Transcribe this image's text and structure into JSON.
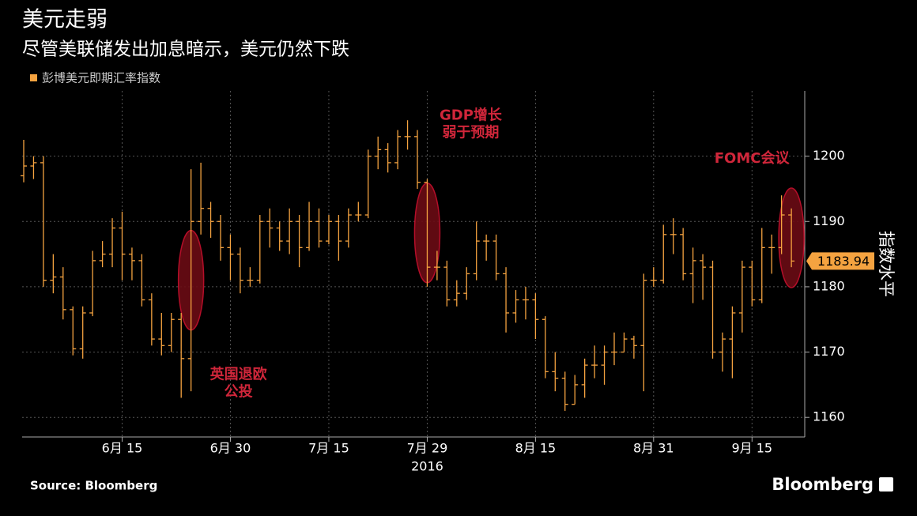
{
  "chart_data": {
    "type": "ohlc",
    "title": "美元走弱",
    "subtitle": "尽管美联储发出加息暗示，美元仍然下跌",
    "y_label": "指数水平",
    "year_label": "2016",
    "source": "Source: Bloomberg",
    "brand": "Bloomberg",
    "series_name": "彭博美元即期汇率指数",
    "color": "#f5a340",
    "grid": true,
    "x": [
      "2016-06-01",
      "2016-06-02",
      "2016-06-03",
      "2016-06-06",
      "2016-06-07",
      "2016-06-08",
      "2016-06-09",
      "2016-06-10",
      "2016-06-13",
      "2016-06-14",
      "2016-06-15",
      "2016-06-16",
      "2016-06-17",
      "2016-06-20",
      "2016-06-21",
      "2016-06-22",
      "2016-06-23",
      "2016-06-24",
      "2016-06-27",
      "2016-06-28",
      "2016-06-29",
      "2016-06-30",
      "2016-07-01",
      "2016-07-05",
      "2016-07-06",
      "2016-07-07",
      "2016-07-08",
      "2016-07-11",
      "2016-07-12",
      "2016-07-13",
      "2016-07-14",
      "2016-07-15",
      "2016-07-18",
      "2016-07-19",
      "2016-07-20",
      "2016-07-21",
      "2016-07-22",
      "2016-07-25",
      "2016-07-26",
      "2016-07-27",
      "2016-07-28",
      "2016-07-29",
      "2016-08-01",
      "2016-08-02",
      "2016-08-03",
      "2016-08-04",
      "2016-08-05",
      "2016-08-08",
      "2016-08-09",
      "2016-08-10",
      "2016-08-11",
      "2016-08-12",
      "2016-08-15",
      "2016-08-16",
      "2016-08-17",
      "2016-08-18",
      "2016-08-19",
      "2016-08-22",
      "2016-08-23",
      "2016-08-24",
      "2016-08-25",
      "2016-08-26",
      "2016-08-29",
      "2016-08-30",
      "2016-08-31",
      "2016-09-01",
      "2016-09-02",
      "2016-09-06",
      "2016-09-07",
      "2016-09-08",
      "2016-09-09",
      "2016-09-12",
      "2016-09-13",
      "2016-09-14",
      "2016-09-15",
      "2016-09-16",
      "2016-09-19",
      "2016-09-20",
      "2016-09-21"
    ],
    "open": [
      1197,
      1198.5,
      1199,
      1181,
      1181.5,
      1176.5,
      1170.5,
      1176,
      1184,
      1185,
      1189,
      1185,
      1184,
      1178,
      1172,
      1171,
      1175,
      1169,
      1190,
      1192,
      1190,
      1186,
      1185,
      1181,
      1181,
      1190,
      1189,
      1187,
      1190,
      1186,
      1190,
      1187,
      1190,
      1187,
      1191,
      1191,
      1200,
      1201,
      1199,
      1203,
      1203,
      1196,
      1183,
      1183,
      1178,
      1179,
      1182,
      1187,
      1187,
      1182,
      1176,
      1178,
      1178,
      1175,
      1167,
      1166,
      1162,
      1165,
      1168,
      1168,
      1170,
      1170,
      1172,
      1171,
      1181,
      1181,
      1188,
      1188,
      1182,
      1184,
      1183,
      1170,
      1172,
      1176,
      1183,
      1178,
      1186,
      1186,
      1191
    ],
    "high": [
      1202.5,
      1200,
      1200,
      1185,
      1183,
      1177,
      1177,
      1185.5,
      1187,
      1190.5,
      1191.5,
      1186,
      1185,
      1179,
      1176,
      1176,
      1176,
      1198,
      1199,
      1193,
      1191,
      1188,
      1186,
      1183,
      1191,
      1192,
      1190,
      1192,
      1191,
      1193,
      1192,
      1191,
      1191,
      1192,
      1193,
      1201,
      1203,
      1202,
      1204,
      1205.5,
      1204,
      1196.5,
      1185.5,
      1184,
      1181,
      1183,
      1190,
      1188,
      1188,
      1183,
      1179.5,
      1180,
      1179,
      1175.5,
      1170,
      1167,
      1166.5,
      1169,
      1171,
      1171,
      1173,
      1173,
      1172.5,
      1182,
      1183,
      1189.5,
      1190.5,
      1189,
      1186,
      1185,
      1184,
      1173,
      1177,
      1184,
      1184,
      1189,
      1188,
      1194,
      1192
    ],
    "low": [
      1196,
      1196.5,
      1180,
      1179,
      1175,
      1169.5,
      1169,
      1175.5,
      1183,
      1183,
      1181,
      1181,
      1177,
      1171,
      1169.5,
      1170,
      1163,
      1164,
      1188,
      1187.5,
      1184,
      1181,
      1179,
      1180,
      1180.5,
      1186,
      1185.5,
      1185,
      1183,
      1185.5,
      1186,
      1186.5,
      1184,
      1186,
      1190,
      1190.5,
      1198,
      1197.5,
      1198,
      1201,
      1195,
      1180,
      1181,
      1177,
      1177,
      1178,
      1181,
      1184,
      1181,
      1173,
      1174.5,
      1175,
      1172,
      1166,
      1164,
      1161,
      1162,
      1163,
      1166,
      1165,
      1168,
      1170,
      1169,
      1164,
      1180,
      1180.5,
      1185,
      1181,
      1177.5,
      1178,
      1169,
      1167,
      1166,
      1173,
      1177,
      1177.5,
      1182,
      1185,
      1183
    ],
    "close": [
      1198.5,
      1199,
      1181,
      1181.5,
      1176.5,
      1170.5,
      1176,
      1184,
      1185,
      1189,
      1185,
      1184,
      1178,
      1172,
      1171,
      1175,
      1169,
      1190,
      1192,
      1190,
      1186,
      1185,
      1181,
      1181,
      1190,
      1189,
      1187,
      1190,
      1186,
      1190,
      1187,
      1190,
      1187,
      1191,
      1191,
      1200,
      1201,
      1199,
      1203,
      1203,
      1196,
      1183,
      1183,
      1178,
      1179,
      1182,
      1187,
      1187,
      1182,
      1176,
      1178,
      1178,
      1175,
      1167,
      1166,
      1162,
      1165,
      1168,
      1168,
      1170,
      1170,
      1172,
      1171,
      1181,
      1181,
      1188,
      1188,
      1182,
      1184,
      1183,
      1170,
      1172,
      1176,
      1183,
      1178,
      1186,
      1186,
      1191,
      1183.94
    ],
    "xticks": [
      {
        "value": "2016-06-15",
        "label": "6月 15"
      },
      {
        "value": "2016-06-30",
        "label": "6月 30"
      },
      {
        "value": "2016-07-15",
        "label": "7月 15"
      },
      {
        "value": "2016-07-29",
        "label": "7月 29"
      },
      {
        "value": "2016-08-15",
        "label": "8月 15"
      },
      {
        "value": "2016-08-31",
        "label": "8月 31"
      },
      {
        "value": "2016-09-15",
        "label": "9月 15"
      }
    ],
    "ylim": [
      1157,
      1210
    ],
    "yticks": [
      1160,
      1170,
      1180,
      1190,
      1200
    ],
    "annotations": [
      {
        "date": "2016-06-24",
        "lines": [
          "英国退欧",
          "公投"
        ]
      },
      {
        "date": "2016-07-29",
        "lines": [
          "GDP增长",
          "弱于预期"
        ]
      },
      {
        "date": "2016-09-21",
        "lines": [
          "FOMC会议"
        ]
      }
    ]
  }
}
